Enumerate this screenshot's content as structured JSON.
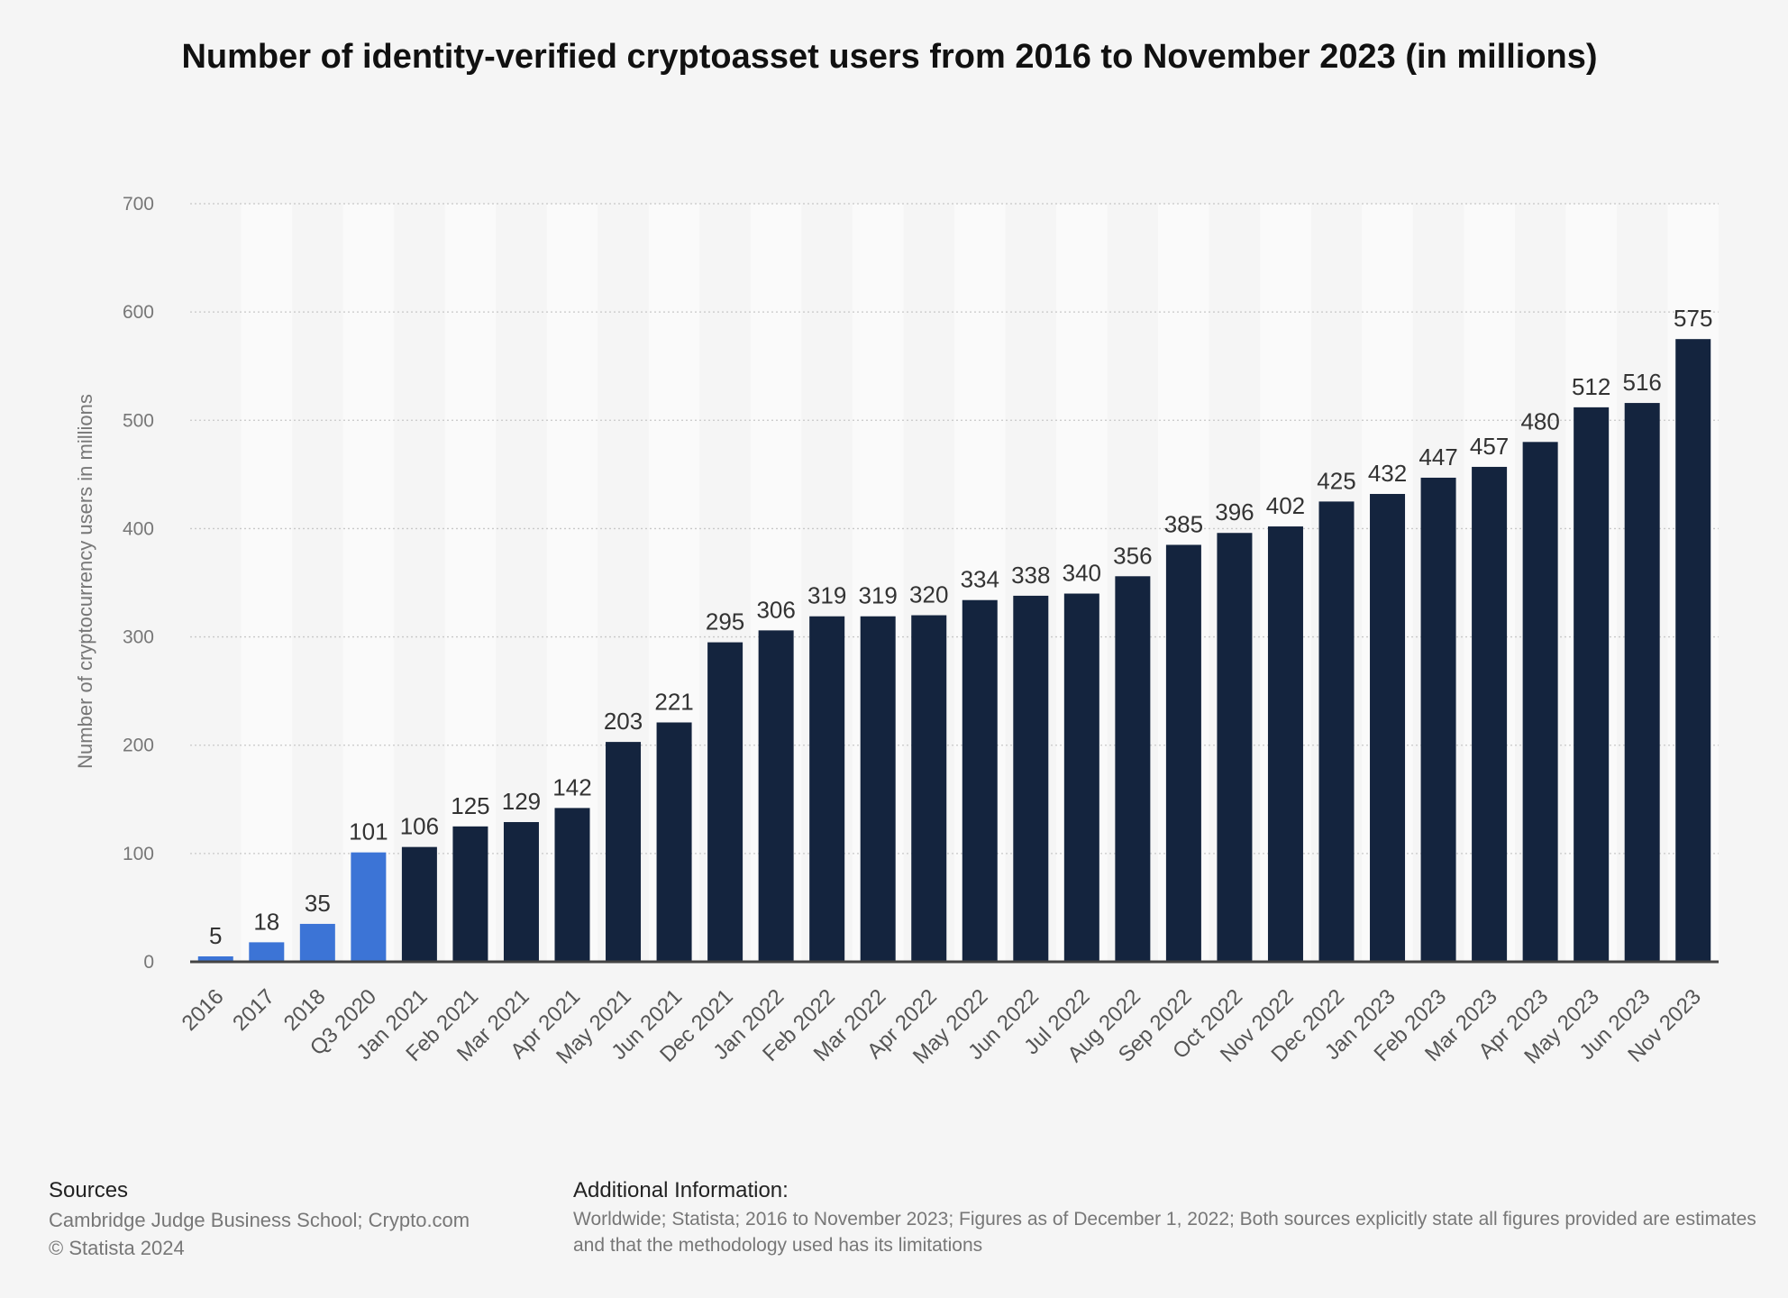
{
  "chart_data": {
    "type": "bar",
    "title": "Number of identity-verified cryptoasset users from 2016 to November 2023 (in millions)",
    "xlabel": "",
    "ylabel": "Number of cryptocurrency users in millions",
    "ylim": [
      0,
      700
    ],
    "yticks": [
      0,
      100,
      200,
      300,
      400,
      500,
      600,
      700
    ],
    "grid": true,
    "categories": [
      "2016",
      "2017",
      "2018",
      "Q3 2020",
      "Jan 2021",
      "Feb 2021",
      "Mar 2021",
      "Apr 2021",
      "May 2021",
      "Jun 2021",
      "Dec 2021",
      "Jan 2022",
      "Feb 2022",
      "Mar 2022",
      "Apr 2022",
      "May 2022",
      "Jun 2022",
      "Jul 2022",
      "Aug 2022",
      "Sep 2022",
      "Oct 2022",
      "Nov 2022",
      "Dec 2022",
      "Jan 2023",
      "Feb 2023",
      "Mar 2023",
      "Apr 2023",
      "May 2023",
      "Jun 2023",
      "Nov 2023"
    ],
    "values": [
      5,
      18,
      35,
      101,
      106,
      125,
      129,
      142,
      203,
      221,
      295,
      306,
      319,
      319,
      320,
      334,
      338,
      340,
      356,
      385,
      396,
      402,
      425,
      432,
      447,
      457,
      480,
      512,
      516,
      575
    ],
    "colors": {
      "early": "#3c74d6",
      "main": "#14243e"
    },
    "early_count": 4
  },
  "footer": {
    "sources_heading": "Sources",
    "sources_lines": [
      "Cambridge Judge Business School; Crypto.com",
      "© Statista 2024"
    ],
    "info_heading": "Additional Information:",
    "info_lines": [
      "Worldwide; Statista; 2016 to November 2023; Figures as of December 1, 2022; Both sources explicitly state all figures provided are estimates and that the",
      "methodology used has its limitations"
    ]
  }
}
